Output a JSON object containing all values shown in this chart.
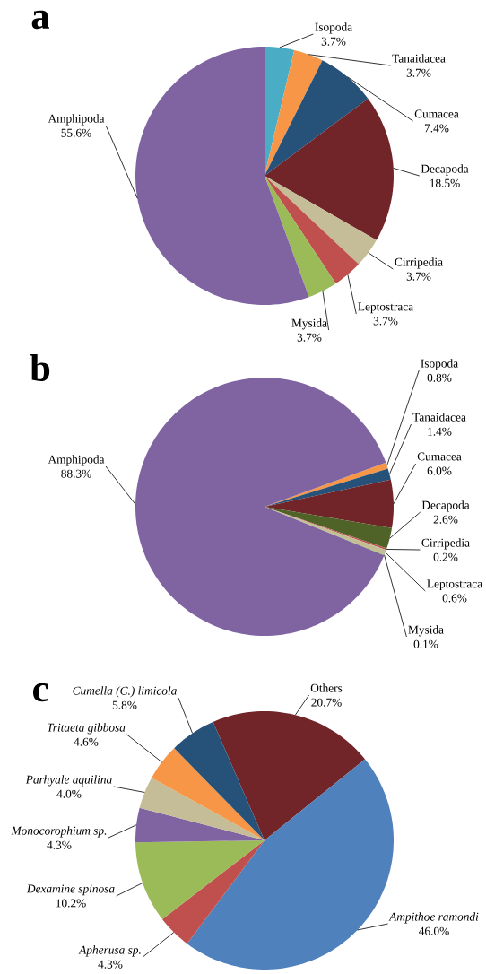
{
  "chart_data": [
    {
      "type": "pie",
      "title": "a",
      "categories": [
        "Isopoda",
        "Tanaidacea",
        "Cumacea",
        "Decapoda",
        "Cirripedia",
        "Leptostraca",
        "Mysida",
        "Amphipoda"
      ],
      "values": [
        3.7,
        3.7,
        7.4,
        18.5,
        3.7,
        3.7,
        3.7,
        55.6
      ],
      "value_labels": [
        "3.7%",
        "3.7%",
        "7.4%",
        "18.5%",
        "3.7%",
        "3.7%",
        "3.7%",
        "55.6%"
      ],
      "colors": [
        "#4bacc6",
        "#f79646",
        "#265178",
        "#722529",
        "#c4bd97",
        "#c0504d",
        "#9bbb59",
        "#8064a2"
      ]
    },
    {
      "type": "pie",
      "title": "b",
      "categories": [
        "Isopoda",
        "Tanaidacea",
        "Cumacea",
        "Decapoda",
        "Cirripedia",
        "Leptostraca",
        "Mysida",
        "Amphipoda"
      ],
      "values": [
        0.8,
        1.4,
        6.0,
        2.6,
        0.2,
        0.6,
        0.1,
        88.3
      ],
      "value_labels": [
        "0.8%",
        "1.4%",
        "6.0%",
        "2.6%",
        "0.2%",
        "0.6%",
        "0.1%",
        "88.3%"
      ],
      "colors": [
        "#f79646",
        "#265178",
        "#722529",
        "#4f6228",
        "#c0504d",
        "#c4bd97",
        "#9bbb59",
        "#8064a2"
      ]
    },
    {
      "type": "pie",
      "title": "c",
      "categories": [
        "Others",
        "Ampithoe ramondi",
        "Apherusa sp.",
        "Dexamine spinosa",
        "Monocorophium sp.",
        "Parhyale aquilina",
        "Tritaeta gibbosa",
        "Cumella (C.) limicola"
      ],
      "values": [
        20.7,
        46.0,
        4.3,
        10.2,
        4.3,
        4.0,
        4.6,
        5.8
      ],
      "value_labels": [
        "20.7%",
        "46.0%",
        "4.3%",
        "10.2%",
        "4.3%",
        "4.0%",
        "4.6%",
        "5.8%"
      ],
      "colors": [
        "#722529",
        "#4f81bd",
        "#c0504d",
        "#9bbb59",
        "#8064a2",
        "#c4bd97",
        "#f79646",
        "#265178"
      ]
    }
  ]
}
